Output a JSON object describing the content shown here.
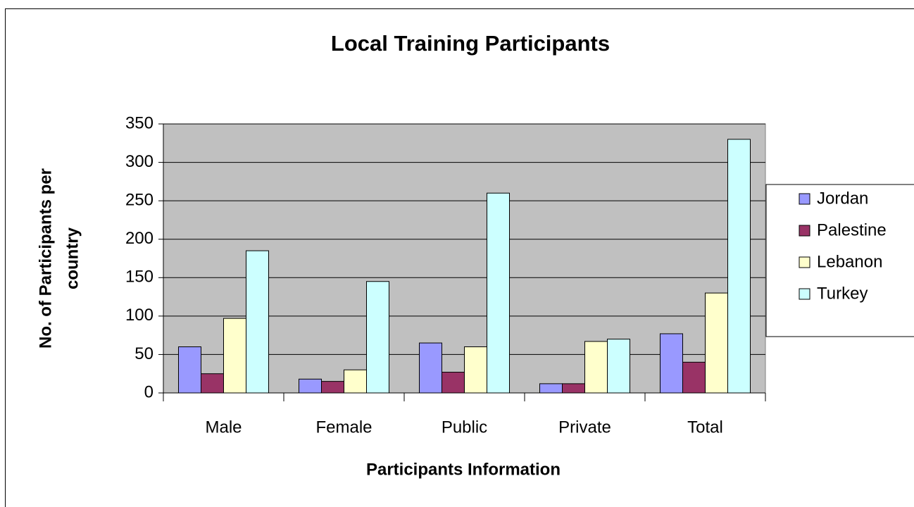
{
  "chart_data": {
    "type": "bar",
    "title": "Local Training Participants",
    "xlabel": "Participants Information",
    "ylabel": [
      "No. of Participants per",
      "country"
    ],
    "categories": [
      "Male",
      "Female",
      "Public",
      "Private",
      "Total"
    ],
    "series": [
      {
        "name": "Jordan",
        "color": "#9999FF",
        "values": [
          60,
          18,
          65,
          12,
          77
        ]
      },
      {
        "name": "Palestine",
        "color": "#993366",
        "values": [
          25,
          15,
          27,
          12,
          40
        ]
      },
      {
        "name": "Lebanon",
        "color": "#FFFFCC",
        "values": [
          97,
          30,
          60,
          67,
          130
        ]
      },
      {
        "name": "Turkey",
        "color": "#CCFFFF",
        "values": [
          185,
          145,
          260,
          70,
          330
        ]
      }
    ],
    "ylim": [
      0,
      350
    ],
    "yticks": [
      0,
      50,
      100,
      150,
      200,
      250,
      300,
      350
    ],
    "grid": true,
    "legend": "right"
  }
}
